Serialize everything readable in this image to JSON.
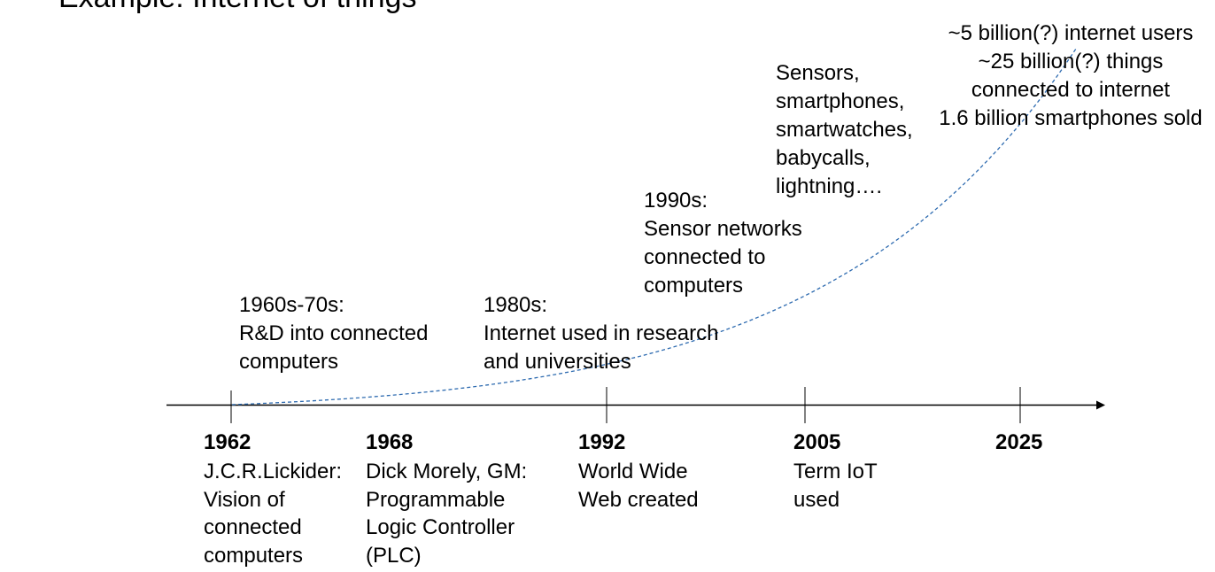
{
  "title": "Example: Internet of things",
  "colors": {
    "curve": "#2e6bb0",
    "axis": "#000000",
    "text": "#000000"
  },
  "eras": [
    {
      "label": "1960s-70s:",
      "lines": [
        "R&D into connected",
        "computers"
      ]
    },
    {
      "label": "1980s:",
      "lines": [
        "Internet used in research",
        "and universities"
      ]
    },
    {
      "label": "1990s:",
      "lines": [
        "Sensor networks",
        "connected to",
        "computers"
      ]
    },
    {
      "label": "",
      "lines": [
        "Sensors,",
        "smartphones,",
        "smartwatches,",
        "babycalls,",
        "lightning…."
      ]
    },
    {
      "label": "",
      "lines": [
        "~5 billion(?) internet users",
        "~25 billion(?) things",
        "connected to internet",
        "1.6 billion smartphones sold"
      ]
    }
  ],
  "events": [
    {
      "year": "1962",
      "lines": [
        "J.C.R.Lickider:",
        "Vision of",
        "connected",
        "computers"
      ]
    },
    {
      "year": "1968",
      "lines": [
        "Dick Morely, GM:",
        "Programmable",
        "Logic Controller",
        "(PLC)"
      ]
    },
    {
      "year": "1992",
      "lines": [
        "World Wide",
        "Web created"
      ]
    },
    {
      "year": "2005",
      "lines": [
        "Term IoT",
        "used"
      ]
    },
    {
      "year": "2025",
      "lines": []
    }
  ],
  "chart_data": {
    "type": "line",
    "title": "Example: Internet of things",
    "description": "Timeline with dashed exponential growth curve",
    "x": [
      1962,
      1968,
      1992,
      2005,
      2025
    ],
    "tick_labels": [
      "1962",
      "1968",
      "1992",
      "2005",
      "2025"
    ],
    "curve": "exponential",
    "style": "dashed"
  }
}
